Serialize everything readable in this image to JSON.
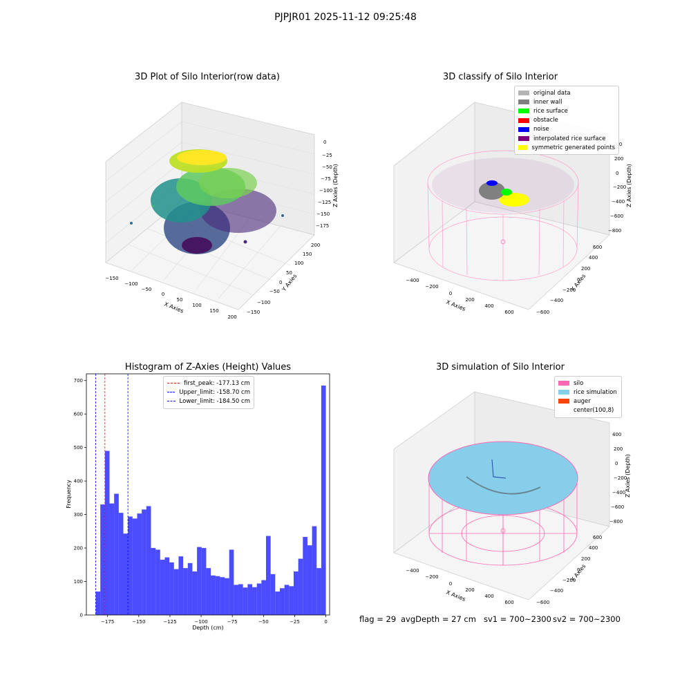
{
  "suptitle": "PJPJR01 2025-11-12 09:25:48",
  "chart_data": [
    {
      "type": "scatter",
      "title": "3D Plot of Silo Interior(row data)",
      "xlabel": "X Axies",
      "ylabel": "Y Axies",
      "zlabel": "Z Axies (Depth)",
      "x_ticks": [
        "−150",
        "−100",
        "−50",
        "0",
        "50",
        "100",
        "150",
        "200"
      ],
      "y_ticks": [
        "−150",
        "−100",
        "−50",
        "0",
        "50",
        "100",
        "150",
        "200"
      ],
      "z_ticks": [
        "0",
        "−25",
        "−50",
        "−75",
        "−100",
        "−125",
        "−150",
        "−175"
      ],
      "colormap": "viridis"
    },
    {
      "type": "scatter",
      "title": "3D classify of Silo Interior",
      "zlabel": "Z Axies (Depth)",
      "xlabel": "X Axies",
      "ylabel": "Y Axies",
      "x_ticks": [
        "−400",
        "−200",
        "0",
        "200",
        "400",
        "600"
      ],
      "y_ticks": [
        "−600",
        "−400",
        "−200",
        "0",
        "200",
        "400",
        "600"
      ],
      "z_ticks": [
        "200",
        "0",
        "−200",
        "−400",
        "−600",
        "−800"
      ],
      "z_tick_extra": "400",
      "legend": [
        {
          "label": "original data",
          "color": "#b4b4b4"
        },
        {
          "label": "inner wall",
          "color": "#808080"
        },
        {
          "label": "rice surface",
          "color": "#00ff00"
        },
        {
          "label": "obstacle",
          "color": "#ff0000"
        },
        {
          "label": "noise",
          "color": "#0000ff"
        },
        {
          "label": "interpolated rice surface",
          "color": "#800080"
        },
        {
          "label": "symmetric generated points",
          "color": "#ffff00"
        }
      ]
    },
    {
      "type": "bar",
      "title": "Histogram of Z-Axies (Height) Values",
      "xlabel": "Depth (cm)",
      "ylabel": "Frequency",
      "xlim": [
        -192,
        3
      ],
      "ylim": [
        0,
        720
      ],
      "x_ticks": [
        -175,
        -150,
        -125,
        -100,
        -75,
        -50,
        -25,
        0
      ],
      "x_tick_labels": [
        "−175",
        "−150",
        "−125",
        "−100",
        "−75",
        "−50",
        "−25",
        "0"
      ],
      "y_ticks": [
        0,
        100,
        200,
        300,
        400,
        500,
        600,
        700
      ],
      "bar_color": "#0000ff",
      "bin_left": -184.5,
      "bin_width": 3.69,
      "values": [
        70,
        330,
        490,
        333,
        362,
        305,
        243,
        294,
        288,
        303,
        315,
        325,
        200,
        195,
        165,
        172,
        157,
        137,
        175,
        140,
        155,
        130,
        203,
        200,
        140,
        118,
        116,
        113,
        110,
        195,
        90,
        92,
        82,
        92,
        83,
        94,
        104,
        236,
        122,
        70,
        80,
        90,
        86,
        130,
        168,
        233,
        208,
        265,
        140,
        685
      ],
      "vlines": [
        {
          "label": "first_peak: -177.13 cm",
          "x": -177.13,
          "color": "#ff0000"
        },
        {
          "label": "Upper_limit: -158.70 cm",
          "x": -158.7,
          "color": "#0000ff"
        },
        {
          "label": "Lower_limit: -184.50 cm",
          "x": -184.5,
          "color": "#0000ff"
        }
      ]
    },
    {
      "type": "scatter",
      "title": "3D simulation of Silo Interior",
      "xlabel": "X Axies",
      "ylabel": "Y Axies",
      "zlabel": "Z Axies (Depth)",
      "x_ticks": [
        "−400",
        "−200",
        "0",
        "200",
        "400",
        "600"
      ],
      "y_ticks": [
        "−600",
        "−400",
        "−200",
        "0",
        "200",
        "400",
        "600"
      ],
      "z_ticks": [
        "400",
        "200",
        "0",
        "−200",
        "−400",
        "−600",
        "−800"
      ],
      "legend": [
        {
          "label": "silo",
          "color": "#ff69b4"
        },
        {
          "label": "rice simulation",
          "color": "#87ceeb"
        },
        {
          "label": "auger",
          "color": "#ff4500"
        },
        {
          "label": "center(100,8)",
          "color": "#ffffff"
        }
      ]
    }
  ],
  "status": {
    "flag": "flag = 29",
    "avg": "avgDepth = 27 cm",
    "sv1": "sv1 = 700~2300",
    "sv2": "sv2 = 700~2300"
  }
}
